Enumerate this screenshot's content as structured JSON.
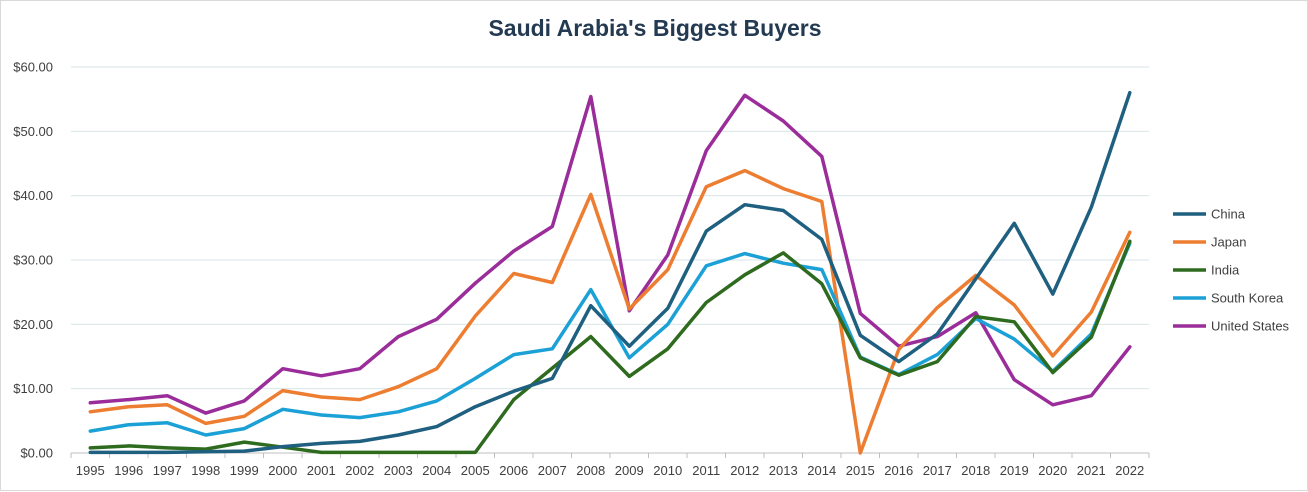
{
  "chart_data": {
    "type": "line",
    "title": "Saudi Arabia's Biggest Buyers",
    "xlabel": "",
    "ylabel": "",
    "ylim": [
      0,
      60
    ],
    "y_ticks": [
      "$0.00",
      "$10.00",
      "$20.00",
      "$30.00",
      "$40.00",
      "$50.00",
      "$60.00"
    ],
    "grid": true,
    "legend_position": "right",
    "categories": [
      "1995",
      "1996",
      "1997",
      "1998",
      "1999",
      "2000",
      "2001",
      "2002",
      "2003",
      "2004",
      "2005",
      "2006",
      "2007",
      "2008",
      "2009",
      "2010",
      "2011",
      "2012",
      "2013",
      "2014",
      "2015",
      "2016",
      "2017",
      "2018",
      "2019",
      "2020",
      "2021",
      "2022"
    ],
    "series": [
      {
        "name": "China",
        "color": "#1f5f7f",
        "values": [
          0.1,
          0.1,
          0.1,
          0.2,
          0.3,
          1.0,
          1.5,
          1.8,
          2.8,
          4.1,
          7.2,
          9.6,
          11.6,
          22.9,
          16.6,
          22.5,
          34.5,
          38.6,
          37.7,
          33.2,
          18.3,
          14.2,
          18.5,
          27.1,
          35.7,
          24.7,
          38.2,
          56.0
        ]
      },
      {
        "name": "Japan",
        "color": "#ed7d31",
        "values": [
          6.4,
          7.2,
          7.5,
          4.6,
          5.7,
          9.7,
          8.7,
          8.3,
          10.3,
          13.1,
          21.3,
          27.9,
          26.5,
          40.2,
          22.4,
          28.5,
          41.4,
          43.9,
          41.1,
          39.1,
          0.0,
          16.1,
          22.6,
          27.6,
          23.0,
          15.1,
          21.9,
          34.3
        ]
      },
      {
        "name": "India",
        "color": "#2e6b1f",
        "values": [
          0.8,
          1.1,
          0.8,
          0.6,
          1.7,
          0.9,
          0.1,
          0.1,
          0.1,
          0.1,
          0.1,
          8.3,
          13.2,
          18.1,
          11.9,
          16.2,
          23.4,
          27.7,
          31.1,
          26.3,
          14.8,
          12.1,
          14.2,
          21.2,
          20.4,
          12.5,
          18.0,
          32.9
        ]
      },
      {
        "name": "South Korea",
        "color": "#1ba1d6",
        "values": [
          3.4,
          4.4,
          4.7,
          2.8,
          3.8,
          6.8,
          5.9,
          5.5,
          6.4,
          8.1,
          11.6,
          15.3,
          16.2,
          25.4,
          14.8,
          20.0,
          29.1,
          31.0,
          29.5,
          28.5,
          14.9,
          12.2,
          15.3,
          20.9,
          17.7,
          12.7,
          18.5,
          32.6
        ]
      },
      {
        "name": "United States",
        "color": "#9b2d9b",
        "values": [
          7.8,
          8.3,
          8.9,
          6.2,
          8.1,
          13.1,
          12.0,
          13.1,
          18.1,
          20.8,
          26.4,
          31.4,
          35.2,
          55.4,
          22.1,
          30.8,
          47.0,
          55.6,
          51.6,
          46.1,
          21.7,
          16.6,
          18.1,
          21.8,
          11.4,
          7.5,
          8.9,
          16.5
        ]
      }
    ]
  }
}
